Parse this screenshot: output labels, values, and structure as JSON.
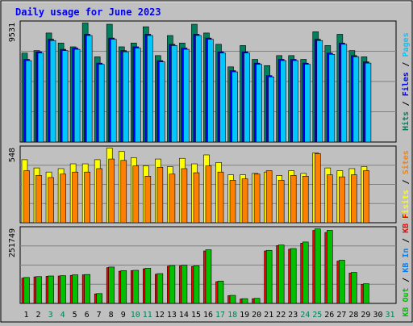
{
  "colors": {
    "background": "#c0c0c0",
    "plot_bg": "#c0c0c0",
    "title": "#0000ff",
    "hits": "#00805c",
    "files": "#0000ff",
    "pages": "#00c8ff",
    "visits": "#ffff00",
    "sites": "#ff8000",
    "kbf": "#ff0000",
    "kbin": "#0080ff",
    "kbout": "#00c000",
    "weekday": "#000000",
    "weekend": "#00805c"
  },
  "chart_data": {
    "type": "bar",
    "title": "Daily usage for June 2023",
    "days": [
      "1",
      "2",
      "3",
      "4",
      "5",
      "6",
      "7",
      "8",
      "9",
      "10",
      "11",
      "12",
      "13",
      "14",
      "15",
      "16",
      "17",
      "18",
      "19",
      "20",
      "21",
      "22",
      "23",
      "24",
      "25",
      "26",
      "27",
      "28",
      "29",
      "30",
      "31"
    ],
    "weekend_days": [
      3,
      4,
      10,
      11,
      17,
      18,
      24,
      25,
      31
    ],
    "panels": [
      {
        "name": "hits-files-pages",
        "max_label": "9531",
        "ymax": 9531,
        "right_labels": [
          {
            "text": "Hits",
            "color": "#00805c"
          },
          {
            "text": "/",
            "color": "#000000"
          },
          {
            "text": "Files",
            "color": "#0000ff"
          },
          {
            "text": "/",
            "color": "#000000"
          },
          {
            "text": "Pages",
            "color": "#00c8ff"
          }
        ],
        "series": [
          {
            "name": "Hits",
            "color": "#00805c",
            "values": [
              7100,
              7300,
              8700,
              7900,
              7600,
              9500,
              6800,
              9400,
              7600,
              7900,
              9200,
              6900,
              8500,
              7900,
              9400,
              8700,
              7800,
              6000,
              7700,
              6600,
              6100,
              6900,
              6900,
              6600,
              8800,
              7700,
              8600,
              7300,
              6800,
              0
            ]
          },
          {
            "name": "Files",
            "color": "#0000ff",
            "values": [
              6600,
              7200,
              8200,
              7400,
              7500,
              8600,
              6300,
              8300,
              7300,
              7600,
              8600,
              6500,
              7800,
              7500,
              8600,
              8300,
              7200,
              5700,
              7200,
              6300,
              5300,
              6600,
              6600,
              6300,
              8200,
              7100,
              7900,
              6900,
              6400,
              0
            ]
          },
          {
            "name": "Pages",
            "color": "#00c8ff",
            "values": [
              6500,
              7100,
              8100,
              7300,
              7400,
              8500,
              6200,
              8200,
              7200,
              7500,
              8500,
              6400,
              7700,
              7400,
              8500,
              8200,
              7100,
              5600,
              7100,
              6200,
              5200,
              6500,
              6500,
              6200,
              8100,
              7000,
              7800,
              6800,
              6300,
              0
            ]
          }
        ]
      },
      {
        "name": "visits-sites",
        "max_label": "548",
        "ymax": 548,
        "right_labels": [
          {
            "text": "Visits",
            "color": "#ffff00"
          },
          {
            "text": "/",
            "color": "#000000"
          },
          {
            "text": "Sites",
            "color": "#ff8000"
          }
        ],
        "series": [
          {
            "name": "Visits",
            "color": "#ffff00",
            "values": [
              460,
              400,
              370,
              395,
              430,
              430,
              460,
              545,
              520,
              475,
              415,
              465,
              410,
              470,
              430,
              495,
              440,
              350,
              350,
              360,
              370,
              345,
              380,
              360,
              510,
              400,
              380,
              395,
              410,
              0
            ]
          },
          {
            "name": "Sites",
            "color": "#ff8000",
            "values": [
              380,
              345,
              330,
              355,
              370,
              370,
              395,
              465,
              455,
              415,
              340,
              405,
              355,
              395,
              365,
              415,
              370,
              310,
              320,
              355,
              380,
              310,
              345,
              340,
              505,
              350,
              335,
              350,
              380,
              0
            ]
          }
        ]
      },
      {
        "name": "kbytes",
        "max_label": "251749",
        "ymax": 251749,
        "right_labels": [
          {
            "text": "KB Out",
            "color": "#00c000"
          },
          {
            "text": "/",
            "color": "#000000"
          },
          {
            "text": "KB In",
            "color": "#0080ff"
          },
          {
            "text": "/",
            "color": "#000000"
          },
          {
            "text": "KB F",
            "color": "#ff0000"
          }
        ],
        "series": [
          {
            "name": "KB F",
            "color": "#ff0000",
            "values": [
              85000,
              89000,
              91000,
              92000,
              94000,
              96000,
              32000,
              120000,
              108000,
              110000,
              116000,
              98000,
              125000,
              126000,
              124000,
              176000,
              73000,
              26000,
              15000,
              16000,
              176000,
              194000,
              182000,
              202000,
              245000,
              238000,
              142000,
              102000,
              64000,
              0
            ]
          },
          {
            "name": "KB Out",
            "color": "#00c000",
            "values": [
              87000,
              90000,
              92000,
              93000,
              96000,
              97000,
              33000,
              122000,
              110000,
              111000,
              118000,
              100000,
              127000,
              128000,
              126000,
              180000,
              75000,
              27000,
              16000,
              17000,
              178000,
              196000,
              184000,
              206000,
              250000,
              245000,
              145000,
              104000,
              66000,
              0
            ]
          }
        ]
      }
    ]
  }
}
